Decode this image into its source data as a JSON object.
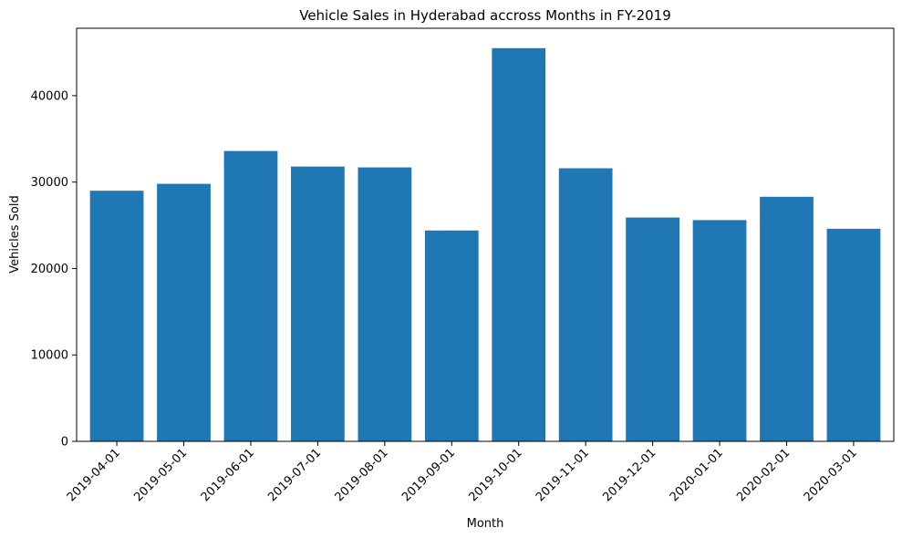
{
  "chart_data": {
    "type": "bar",
    "title": "Vehicle Sales in Hyderabad accross Months in FY-2019",
    "xlabel": "Month",
    "ylabel": "Vehicles Sold",
    "categories": [
      "2019-04-01",
      "2019-05-01",
      "2019-06-01",
      "2019-07-01",
      "2019-08-01",
      "2019-09-01",
      "2019-10-01",
      "2019-11-01",
      "2019-12-01",
      "2020-01-01",
      "2020-02-01",
      "2020-03-01"
    ],
    "values": [
      29000,
      29800,
      33600,
      31800,
      31700,
      24400,
      45500,
      31600,
      25900,
      25600,
      28300,
      24600
    ],
    "ylim": [
      0,
      47800
    ],
    "yticks": [
      0,
      10000,
      20000,
      30000,
      40000
    ],
    "ytick_labels": [
      "0",
      "10000",
      "20000",
      "30000",
      "40000"
    ],
    "bar_color": "#1f77b4",
    "grid": false,
    "legend": false
  }
}
